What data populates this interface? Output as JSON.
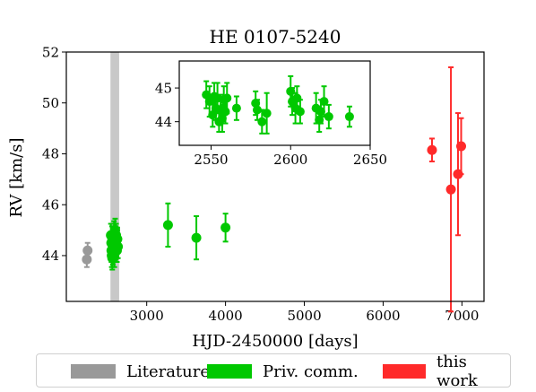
{
  "chart_data": [
    {
      "type": "scatter",
      "title": "HE 0107-5240",
      "xlabel": "HJD-2450000 [days]",
      "ylabel": "RV [km/s]",
      "xlim": [
        1980,
        7280
      ],
      "ylim": [
        42.2,
        52
      ],
      "xticks": [
        3000,
        4000,
        5000,
        6000,
        7000
      ],
      "yticks": [
        44,
        46,
        48,
        50,
        52
      ],
      "grid": false,
      "legend_position": "bottom",
      "shaded_band": {
        "x_from": 2540,
        "x_to": 2650,
        "color": "#c8c8c8"
      },
      "series": [
        {
          "name": "Literature",
          "color": "#999999",
          "points": [
            {
              "x": 2250,
              "y": 44.2,
              "err": 0.3
            },
            {
              "x": 2240,
              "y": 43.85,
              "err": 0.3
            }
          ]
        },
        {
          "name": "Priv. comm.",
          "color": "#00c800",
          "points": [
            {
              "x": 2545,
              "y": 44.8,
              "err": 0.45
            },
            {
              "x": 2550,
              "y": 44.5,
              "err": 0.45
            },
            {
              "x": 2552,
              "y": 44.2,
              "err": 0.45
            },
            {
              "x": 2556,
              "y": 44.0,
              "err": 0.45
            },
            {
              "x": 2560,
              "y": 44.7,
              "err": 0.45
            },
            {
              "x": 2563,
              "y": 43.9,
              "err": 0.45
            },
            {
              "x": 2566,
              "y": 44.4,
              "err": 0.45
            },
            {
              "x": 2570,
              "y": 44.1,
              "err": 0.45
            },
            {
              "x": 2575,
              "y": 44.6,
              "err": 0.45
            },
            {
              "x": 2580,
              "y": 44.3,
              "err": 0.45
            },
            {
              "x": 2585,
              "y": 44.9,
              "err": 0.45
            },
            {
              "x": 2590,
              "y": 44.0,
              "err": 0.45
            },
            {
              "x": 2595,
              "y": 44.5,
              "err": 0.45
            },
            {
              "x": 2600,
              "y": 45.0,
              "err": 0.45
            },
            {
              "x": 2605,
              "y": 44.7,
              "err": 0.45
            },
            {
              "x": 2608,
              "y": 44.3,
              "err": 0.45
            },
            {
              "x": 2612,
              "y": 44.8,
              "err": 0.45
            },
            {
              "x": 2618,
              "y": 44.6,
              "err": 0.45
            },
            {
              "x": 2622,
              "y": 44.2,
              "err": 0.45
            },
            {
              "x": 2628,
              "y": 44.65,
              "err": 0.45
            },
            {
              "x": 2635,
              "y": 44.35,
              "err": 0.45
            },
            {
              "x": 3270,
              "y": 45.2,
              "err": 0.85
            },
            {
              "x": 3630,
              "y": 44.7,
              "err": 0.85
            },
            {
              "x": 4000,
              "y": 45.1,
              "err": 0.55
            }
          ]
        },
        {
          "name": "this work",
          "color": "#ff2a2a",
          "points": [
            {
              "x": 6620,
              "y": 48.15,
              "err": 0.45
            },
            {
              "x": 6860,
              "y": 46.6,
              "err": 4.8
            },
            {
              "x": 6950,
              "y": 47.2,
              "err": 2.4
            },
            {
              "x": 6990,
              "y": 48.3,
              "err": 1.1
            }
          ]
        }
      ]
    },
    {
      "type": "scatter",
      "title": "",
      "xlabel": "",
      "ylabel": "",
      "xlim": [
        2530,
        2650
      ],
      "ylim": [
        43.3,
        45.8
      ],
      "xticks": [
        2550,
        2600,
        2650
      ],
      "yticks": [
        44,
        45
      ],
      "series": [
        {
          "name": "Priv. comm.",
          "color": "#00c800",
          "points": [
            {
              "x": 2547,
              "y": 44.8,
              "err": 0.4
            },
            {
              "x": 2549,
              "y": 44.6,
              "err": 0.45
            },
            {
              "x": 2551,
              "y": 44.2,
              "err": 0.35
            },
            {
              "x": 2552,
              "y": 44.75,
              "err": 0.4
            },
            {
              "x": 2553,
              "y": 44.4,
              "err": 0.35
            },
            {
              "x": 2554,
              "y": 44.7,
              "err": 0.45
            },
            {
              "x": 2555,
              "y": 44.0,
              "err": 0.3
            },
            {
              "x": 2556,
              "y": 44.35,
              "err": 0.45
            },
            {
              "x": 2557,
              "y": 44.1,
              "err": 0.4
            },
            {
              "x": 2558,
              "y": 44.65,
              "err": 0.4
            },
            {
              "x": 2559,
              "y": 44.3,
              "err": 0.35
            },
            {
              "x": 2560,
              "y": 44.7,
              "err": 0.45
            },
            {
              "x": 2566,
              "y": 44.4,
              "err": 0.35
            },
            {
              "x": 2578,
              "y": 44.55,
              "err": 0.35
            },
            {
              "x": 2579,
              "y": 44.35,
              "err": 0.3
            },
            {
              "x": 2582,
              "y": 44.0,
              "err": 0.35
            },
            {
              "x": 2585,
              "y": 44.25,
              "err": 0.6
            },
            {
              "x": 2600,
              "y": 44.9,
              "err": 0.45
            },
            {
              "x": 2601,
              "y": 44.6,
              "err": 0.4
            },
            {
              "x": 2603,
              "y": 44.4,
              "err": 0.45
            },
            {
              "x": 2604,
              "y": 44.7,
              "err": 0.35
            },
            {
              "x": 2606,
              "y": 44.3,
              "err": 0.35
            },
            {
              "x": 2616,
              "y": 44.4,
              "err": 0.45
            },
            {
              "x": 2618,
              "y": 44.05,
              "err": 0.35
            },
            {
              "x": 2619,
              "y": 44.3,
              "err": 0.35
            },
            {
              "x": 2621,
              "y": 44.6,
              "err": 0.45
            },
            {
              "x": 2624,
              "y": 44.15,
              "err": 0.35
            },
            {
              "x": 2637,
              "y": 44.15,
              "err": 0.3
            }
          ]
        }
      ]
    }
  ],
  "legend": {
    "items": [
      {
        "label": "Literature",
        "color": "#999999"
      },
      {
        "label": "Priv. comm.",
        "color": "#00c800"
      },
      {
        "label": "this work",
        "color": "#ff2a2a"
      }
    ]
  }
}
